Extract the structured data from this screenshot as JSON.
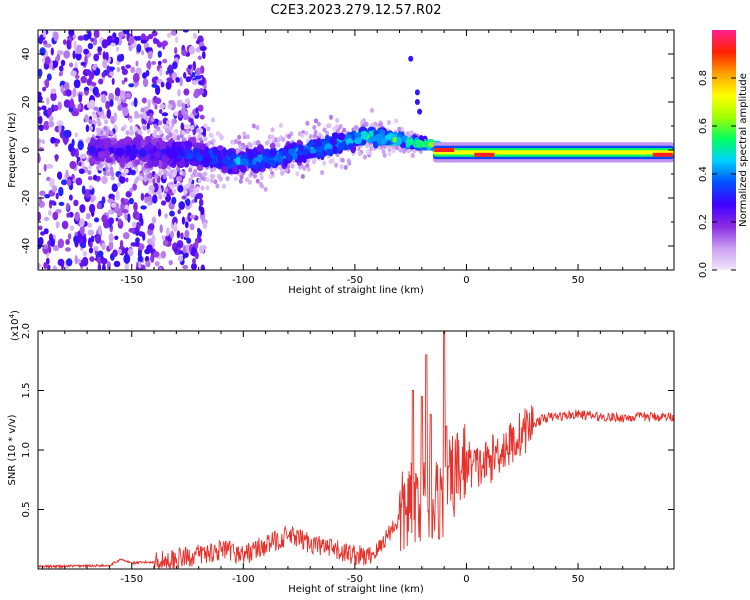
{
  "title": "C2E3.2023.279.12.57.R02",
  "chart_data": [
    {
      "type": "heatmap",
      "name": "spectrogram",
      "xlabel": "Height of straight line (km)",
      "ylabel": "Frequency (Hz)",
      "xlim": [
        -192,
        93
      ],
      "ylim": [
        -50,
        50
      ],
      "x_ticks": [
        -150,
        -100,
        -50,
        0,
        50
      ],
      "x_tick_labels": [
        "-150",
        "-100",
        "-50",
        "0",
        "50"
      ],
      "y_ticks": [
        -40,
        -20,
        0,
        20,
        40
      ],
      "y_tick_labels": [
        "-40",
        "-20",
        "0",
        "20",
        "40"
      ],
      "colorbar": {
        "label": "Normalized spectral amplitude",
        "range": [
          0,
          1
        ],
        "ticks": [
          0.0,
          0.2,
          0.4,
          0.6,
          0.8
        ],
        "tick_labels": [
          "0.0",
          "0.2",
          "0.4",
          "0.6",
          "0.8"
        ],
        "colors": [
          "#f4e6fb",
          "#c9a0f2",
          "#8a2be2",
          "#4000ff",
          "#0050ff",
          "#00d0ff",
          "#00ff60",
          "#a0ff00",
          "#ffff00",
          "#ffa000",
          "#ff2000",
          "#ff2090"
        ]
      },
      "ridge": [
        {
          "x": -165,
          "y": 0,
          "spread": 7,
          "amp": 0.28
        },
        {
          "x": -140,
          "y": -1,
          "spread": 8,
          "amp": 0.3
        },
        {
          "x": -120,
          "y": -2,
          "spread": 7,
          "amp": 0.36
        },
        {
          "x": -100,
          "y": -5,
          "spread": 6,
          "amp": 0.42
        },
        {
          "x": -80,
          "y": -2,
          "spread": 5,
          "amp": 0.44
        },
        {
          "x": -60,
          "y": 2,
          "spread": 5,
          "amp": 0.46
        },
        {
          "x": -45,
          "y": 6,
          "spread": 4,
          "amp": 0.55
        },
        {
          "x": -30,
          "y": 4,
          "spread": 3,
          "amp": 0.56
        },
        {
          "x": -15,
          "y": 2,
          "spread": 2,
          "amp": 0.6
        },
        {
          "x": -10,
          "y": 0,
          "spread": 1.5,
          "amp": 0.95
        },
        {
          "x": 0,
          "y": -1,
          "spread": 1.5,
          "amp": 0.6
        },
        {
          "x": 8,
          "y": -2,
          "spread": 1.5,
          "amp": 0.95
        },
        {
          "x": 20,
          "y": -1,
          "spread": 1.5,
          "amp": 0.7
        },
        {
          "x": 50,
          "y": -1,
          "spread": 1.5,
          "amp": 0.68
        },
        {
          "x": 80,
          "y": -1,
          "spread": 1.5,
          "amp": 0.72
        },
        {
          "x": 90,
          "y": -2,
          "spread": 1.5,
          "amp": 0.8
        }
      ]
    },
    {
      "type": "line",
      "name": "snr",
      "xlabel": "Height of straight line (km)",
      "ylabel": "SNR (10 * v/v)",
      "y_multiplier_label": "(x10",
      "y_multiplier_exp": "4",
      "y_multiplier_close": ")",
      "xlim": [
        -192,
        93
      ],
      "ylim": [
        0,
        2.0
      ],
      "x_ticks": [
        -150,
        -100,
        -50,
        0,
        50
      ],
      "x_tick_labels": [
        "-150",
        "-100",
        "-50",
        "0",
        "50"
      ],
      "y_ticks": [
        0.5,
        1.0,
        1.5,
        2.0
      ],
      "y_tick_labels": [
        "0.5",
        "1.0",
        "1.5",
        "2.0"
      ],
      "color": "#e8302a",
      "x": [
        -192,
        -160,
        -155,
        -150,
        -140,
        -130,
        -120,
        -110,
        -100,
        -90,
        -80,
        -70,
        -60,
        -50,
        -45,
        -40,
        -35,
        -30,
        -25,
        -20,
        -15,
        -10,
        -5,
        0,
        5,
        10,
        15,
        20,
        25,
        30,
        35,
        40,
        50,
        60,
        70,
        80,
        93
      ],
      "values": [
        0.02,
        0.03,
        0.08,
        0.05,
        0.06,
        0.08,
        0.12,
        0.16,
        0.12,
        0.2,
        0.28,
        0.22,
        0.16,
        0.12,
        0.1,
        0.15,
        0.3,
        0.42,
        0.55,
        0.62,
        0.55,
        0.62,
        0.8,
        0.9,
        0.85,
        0.9,
        1.0,
        1.05,
        1.15,
        1.22,
        1.27,
        1.28,
        1.3,
        1.28,
        1.27,
        1.28,
        1.28
      ],
      "spikes": [
        {
          "x": -24,
          "y": 1.5
        },
        {
          "x": -20,
          "y": 1.45
        },
        {
          "x": -18,
          "y": 1.8
        },
        {
          "x": -16,
          "y": 1.3
        },
        {
          "x": -10,
          "y": 2.0
        },
        {
          "x": -9,
          "y": 1.2
        }
      ]
    }
  ]
}
